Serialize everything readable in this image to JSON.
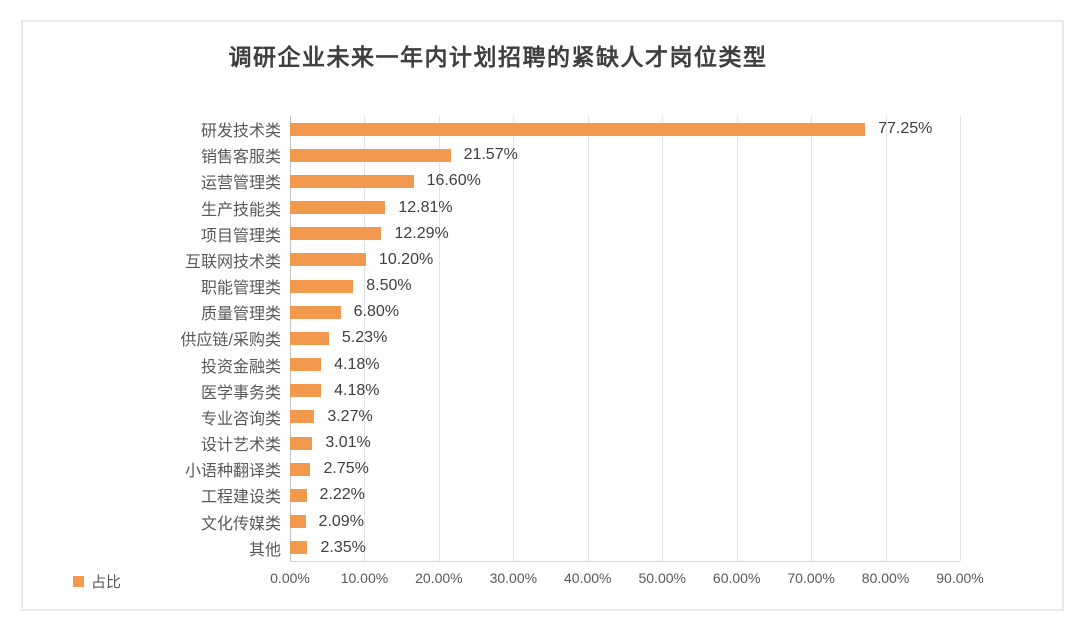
{
  "chart_data": {
    "type": "bar",
    "orientation": "horizontal",
    "title": "调研企业未来一年内计划招聘的紧缺人才岗位类型",
    "legend": "占比",
    "legend_position": "bottom-left",
    "categories": [
      "研发技术类",
      "销售客服类",
      "运营管理类",
      "生产技能类",
      "项目管理类",
      "互联网技术类",
      "职能管理类",
      "质量管理类",
      "供应链/采购类",
      "投资金融类",
      "医学事务类",
      "专业咨询类",
      "设计艺术类",
      "小语种翻译类",
      "工程建设类",
      "文化传媒类",
      "其他"
    ],
    "values": [
      77.25,
      21.57,
      16.6,
      12.81,
      12.29,
      10.2,
      8.5,
      6.8,
      5.23,
      4.18,
      4.18,
      3.27,
      3.01,
      2.75,
      2.22,
      2.09,
      2.35
    ],
    "value_labels": [
      "77.25%",
      "21.57%",
      "16.60%",
      "12.81%",
      "12.29%",
      "10.20%",
      "8.50%",
      "6.80%",
      "5.23%",
      "4.18%",
      "4.18%",
      "3.27%",
      "3.01%",
      "2.75%",
      "2.22%",
      "2.09%",
      "2.35%"
    ],
    "x_ticks": [
      "0.00%",
      "10.00%",
      "20.00%",
      "30.00%",
      "40.00%",
      "50.00%",
      "60.00%",
      "70.00%",
      "80.00%",
      "90.00%"
    ],
    "xlim": [
      0,
      90
    ],
    "xlabel": "",
    "ylabel": "",
    "grid": "vertical",
    "colors": {
      "bar": "#F2994E",
      "title_text": "#3F3F3F",
      "label_text": "#595959",
      "value_text": "#404040",
      "gridline": "#E3E3E3",
      "axis_line": "#C4C4C4",
      "card_border": "#E9E9E9"
    }
  }
}
